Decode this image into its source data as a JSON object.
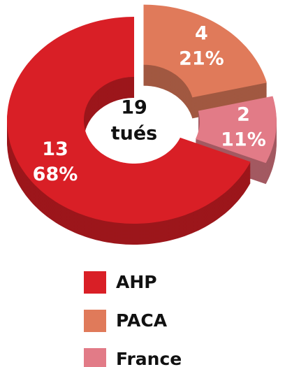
{
  "chart_data": {
    "type": "donut",
    "categories": [
      "AHP",
      "PACA",
      "France"
    ],
    "values": [
      13,
      4,
      2
    ],
    "percent_values": [
      68,
      21,
      11
    ],
    "percent_labels": [
      "68%",
      "21%",
      "11%"
    ],
    "colors": [
      "#d91f26",
      "#e07a5a",
      "#e27b87"
    ],
    "total": 19,
    "total_label": "tués",
    "legend": "bottom"
  }
}
